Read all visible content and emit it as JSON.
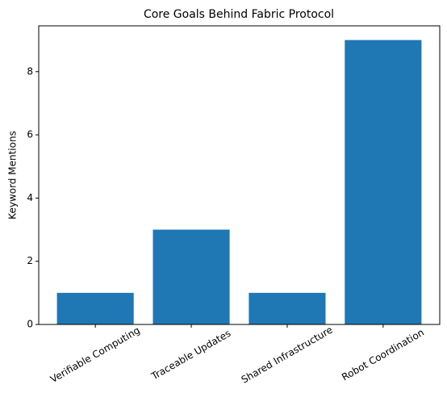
{
  "chart_data": {
    "type": "bar",
    "title": "Core Goals Behind Fabric Protocol",
    "ylabel": "Keyword Mentions",
    "categories": [
      "Verifiable Computing",
      "Traceable Updates",
      "Shared Infrastructure",
      "Robot Coordination"
    ],
    "values": [
      1,
      3,
      1,
      9
    ],
    "color": "#1f77b4",
    "ylim": [
      0,
      9.45
    ],
    "yticks": [
      0,
      2,
      4,
      6,
      8
    ],
    "grid": false
  }
}
